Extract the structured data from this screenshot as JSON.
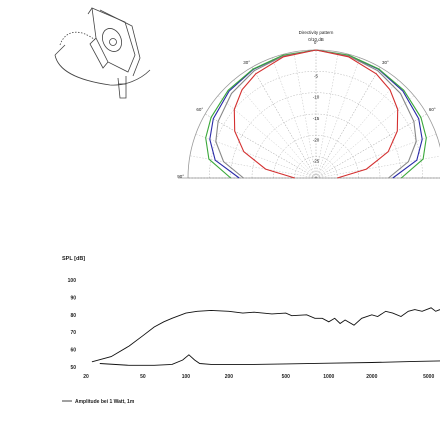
{
  "polar_chart": {
    "type": "polar",
    "title": "Directivity pattern",
    "subtitle": "0/10 dB",
    "angle_labels": [
      {
        "text": "0°",
        "angle": 0
      },
      {
        "text": "30°",
        "angle": -30
      },
      {
        "text": "30°",
        "angle": 30
      },
      {
        "text": "60°",
        "angle": -60
      },
      {
        "text": "60°",
        "angle": 60
      },
      {
        "text": "90°",
        "angle": -90
      },
      {
        "text": "90°",
        "angle": 90
      }
    ],
    "radial_labels": [
      "-5",
      "-10",
      "-15",
      "-20",
      "-25"
    ],
    "series": [
      {
        "color": "#2a2aa8",
        "points": [
          [
            -90,
            -12
          ],
          [
            -80,
            -6
          ],
          [
            -70,
            -3.5
          ],
          [
            -60,
            -2.2
          ],
          [
            -45,
            -1.2
          ],
          [
            -30,
            -0.6
          ],
          [
            -15,
            -0.3
          ],
          [
            0,
            0
          ],
          [
            15,
            -0.3
          ],
          [
            30,
            -0.6
          ],
          [
            45,
            -1.2
          ],
          [
            60,
            -2.2
          ],
          [
            70,
            -3.5
          ],
          [
            80,
            -6
          ],
          [
            90,
            -12
          ]
        ]
      },
      {
        "color": "#3aa83a",
        "points": [
          [
            -90,
            -10
          ],
          [
            -80,
            -4.5
          ],
          [
            -70,
            -2.5
          ],
          [
            -60,
            -1.6
          ],
          [
            -45,
            -0.9
          ],
          [
            -30,
            -0.5
          ],
          [
            -15,
            -0.2
          ],
          [
            0,
            0
          ],
          [
            15,
            -0.2
          ],
          [
            30,
            -0.5
          ],
          [
            45,
            -0.9
          ],
          [
            60,
            -1.6
          ],
          [
            70,
            -2.5
          ],
          [
            80,
            -4.5
          ],
          [
            90,
            -10
          ]
        ]
      },
      {
        "color": "#888888",
        "points": [
          [
            -90,
            -13
          ],
          [
            -80,
            -8
          ],
          [
            -70,
            -5
          ],
          [
            -60,
            -3.5
          ],
          [
            -45,
            -2
          ],
          [
            -30,
            -1
          ],
          [
            -15,
            -0.4
          ],
          [
            0,
            0
          ],
          [
            15,
            -0.4
          ],
          [
            30,
            -1
          ],
          [
            45,
            -2
          ],
          [
            60,
            -3.5
          ],
          [
            70,
            -5
          ],
          [
            80,
            -8
          ],
          [
            90,
            -13
          ]
        ]
      },
      {
        "color": "#d43030",
        "points": [
          [
            -90,
            -25
          ],
          [
            -80,
            -18
          ],
          [
            -70,
            -12
          ],
          [
            -60,
            -8
          ],
          [
            -50,
            -5
          ],
          [
            -40,
            -3
          ],
          [
            -30,
            -1.8
          ],
          [
            -15,
            -0.6
          ],
          [
            0,
            0
          ],
          [
            15,
            -0.6
          ],
          [
            30,
            -1.8
          ],
          [
            40,
            -3
          ],
          [
            50,
            -5
          ],
          [
            60,
            -8
          ],
          [
            70,
            -12
          ],
          [
            80,
            -18
          ],
          [
            90,
            -25
          ]
        ]
      }
    ]
  },
  "spl_chart": {
    "type": "line",
    "ylabel": "SPL [dB]",
    "yticks": [
      50,
      60,
      70,
      80,
      90,
      100
    ],
    "xticks": [
      {
        "label": "20",
        "value": 20
      },
      {
        "label": "50",
        "value": 50
      },
      {
        "label": "100",
        "value": 100
      },
      {
        "label": "200",
        "value": 200
      },
      {
        "label": "500",
        "value": 500
      },
      {
        "label": "1000",
        "value": 1000
      },
      {
        "label": "2000",
        "value": 2000
      },
      {
        "label": "5000",
        "value": 5000
      }
    ],
    "xlim": [
      20,
      6000
    ],
    "ylim": [
      50,
      100
    ],
    "legend": "Amplitude bei 1 Watt, 1m",
    "series": [
      {
        "name": "Amplitude bei 1 Watt, 1m",
        "color": "#111111",
        "points": [
          [
            22,
            53
          ],
          [
            30,
            56
          ],
          [
            40,
            62
          ],
          [
            50,
            68
          ],
          [
            60,
            73
          ],
          [
            70,
            76
          ],
          [
            80,
            78
          ],
          [
            100,
            81
          ],
          [
            120,
            82
          ],
          [
            150,
            82.5
          ],
          [
            200,
            82
          ],
          [
            250,
            81
          ],
          [
            300,
            81.5
          ],
          [
            400,
            80.5
          ],
          [
            500,
            81
          ],
          [
            550,
            79.5
          ],
          [
            700,
            80
          ],
          [
            800,
            78
          ],
          [
            900,
            78
          ],
          [
            1000,
            76
          ],
          [
            1100,
            78
          ],
          [
            1200,
            75
          ],
          [
            1300,
            77
          ],
          [
            1500,
            74
          ],
          [
            1700,
            78
          ],
          [
            2000,
            80
          ],
          [
            2200,
            79
          ],
          [
            2500,
            82
          ],
          [
            2800,
            81
          ],
          [
            3200,
            79
          ],
          [
            3600,
            82
          ],
          [
            4000,
            83
          ],
          [
            4500,
            82
          ],
          [
            5200,
            84
          ],
          [
            5600,
            82
          ],
          [
            6000,
            83
          ]
        ]
      },
      {
        "name": "",
        "color": "#111111",
        "points": [
          [
            25,
            52
          ],
          [
            40,
            51
          ],
          [
            60,
            51
          ],
          [
            80,
            51.5
          ],
          [
            95,
            54
          ],
          [
            105,
            57
          ],
          [
            115,
            54
          ],
          [
            125,
            52
          ],
          [
            150,
            51.5
          ],
          [
            200,
            51.5
          ],
          [
            300,
            51.5
          ],
          [
            500,
            51.8
          ],
          [
            1000,
            52.2
          ],
          [
            2000,
            52.6
          ],
          [
            4000,
            53.2
          ],
          [
            6000,
            53.5
          ]
        ]
      }
    ]
  }
}
